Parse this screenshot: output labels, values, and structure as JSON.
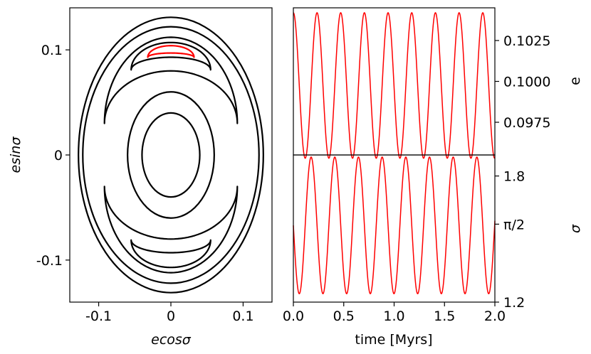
{
  "chart_data": [
    {
      "type": "line",
      "panel": "phase-portrait",
      "xlabel": "ecosσ",
      "ylabel": "esinσ",
      "xlim": [
        -0.14,
        0.14
      ],
      "ylim": [
        -0.14,
        0.14
      ],
      "xticks": [
        {
          "value": -0.1,
          "label": "-0.1"
        },
        {
          "value": 0,
          "label": "0"
        },
        {
          "value": 0.1,
          "label": "0.1"
        }
      ],
      "yticks": [
        {
          "value": -0.1,
          "label": "-0.1"
        },
        {
          "value": 0,
          "label": "0"
        },
        {
          "value": 0.1,
          "label": "0.1"
        }
      ],
      "series_color_primary": "#000000",
      "series_color_highlight": "#ff0000",
      "contours": [
        {
          "kind": "ellipse",
          "rx": 0.128,
          "ry": 0.131,
          "color": "#000000"
        },
        {
          "kind": "ellipse",
          "rx": 0.122,
          "ry": 0.122,
          "color": "#000000"
        },
        {
          "kind": "ellipse",
          "rx": 0.06,
          "ry": 0.06,
          "color": "#000000"
        },
        {
          "kind": "ellipse",
          "rx": 0.04,
          "ry": 0.04,
          "color": "#000000"
        },
        {
          "kind": "crescent",
          "side": "top",
          "x_ends": [
            -0.092,
            0.092
          ],
          "y_tip": 0.03,
          "y_outer": 0.112,
          "y_inner": 0.08,
          "color": "#000000"
        },
        {
          "kind": "crescent",
          "side": "top",
          "x_ends": [
            -0.055,
            0.055
          ],
          "y_tip": 0.081,
          "y_outer": 0.107,
          "y_inner": 0.093,
          "color": "#000000"
        },
        {
          "kind": "crescent",
          "side": "top",
          "x_ends": [
            -0.032,
            0.032
          ],
          "y_tip": 0.093,
          "y_outer": 0.104,
          "y_inner": 0.097,
          "color": "#ff0000"
        },
        {
          "kind": "crescent",
          "side": "bottom",
          "x_ends": [
            -0.092,
            0.092
          ],
          "y_tip": -0.03,
          "y_outer": -0.112,
          "y_inner": -0.08,
          "color": "#000000"
        },
        {
          "kind": "crescent",
          "side": "bottom",
          "x_ends": [
            -0.055,
            0.055
          ],
          "y_tip": -0.081,
          "y_outer": -0.107,
          "y_inner": -0.093,
          "color": "#000000"
        }
      ]
    },
    {
      "type": "line",
      "panel": "eccentricity-vs-time",
      "ylabel": "e",
      "xlim": [
        0.0,
        2.0
      ],
      "ylim": [
        0.0955,
        0.1045
      ],
      "yticks": [
        {
          "value": 0.0975,
          "label": "0.0975"
        },
        {
          "value": 0.1,
          "label": "0.1000"
        },
        {
          "value": 0.1025,
          "label": "0.1025"
        }
      ],
      "series": [
        {
          "color": "#ff0000",
          "function": "cosine",
          "mean": 0.09975,
          "amplitude": 0.00445,
          "period": 0.235,
          "phase_start": "max"
        }
      ]
    },
    {
      "type": "line",
      "panel": "angle-vs-time",
      "xlabel": "time [Myrs]",
      "ylabel": "σ",
      "xlim": [
        0.0,
        2.0
      ],
      "ylim": [
        1.2,
        1.9
      ],
      "xticks": [
        {
          "value": 0.0,
          "label": "0.0"
        },
        {
          "value": 0.5,
          "label": "0.5"
        },
        {
          "value": 1.0,
          "label": "1.0"
        },
        {
          "value": 1.5,
          "label": "1.5"
        },
        {
          "value": 2.0,
          "label": "2.0"
        }
      ],
      "yticks": [
        {
          "value": 1.2,
          "label": "1.2"
        },
        {
          "value": 1.5708,
          "label": "π/2"
        },
        {
          "value": 1.8,
          "label": "1.8"
        }
      ],
      "series": [
        {
          "color": "#ff0000",
          "function": "sine",
          "mean": 1.565,
          "amplitude": 0.325,
          "period": 0.235,
          "phase_start": "descending from mean"
        }
      ]
    }
  ]
}
